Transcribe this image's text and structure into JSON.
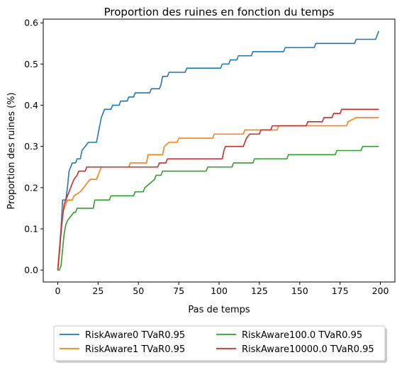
{
  "chart_data": {
    "type": "line",
    "title": "Proportion des ruines en fonction du temps",
    "xlabel": "Pas de temps",
    "ylabel": "Proportion des ruines (%)",
    "xlim": [
      -9,
      209
    ],
    "ylim": [
      -0.029,
      0.609
    ],
    "xticks": [
      0,
      25,
      50,
      75,
      100,
      125,
      150,
      175,
      200
    ],
    "yticks": [
      0.0,
      0.1,
      0.2,
      0.3,
      0.4,
      0.5,
      0.6
    ],
    "xtick_labels": [
      "0",
      "25",
      "50",
      "75",
      "100",
      "125",
      "150",
      "175",
      "200"
    ],
    "ytick_labels": [
      "0.0",
      "0.1",
      "0.2",
      "0.3",
      "0.4",
      "0.5",
      "0.6"
    ],
    "grid": false,
    "legend_position": "bottom-center-outside",
    "series": [
      {
        "name": "RiskAware0 TVaR0.95",
        "color": "#1f77b4",
        "points": [
          [
            0,
            0
          ],
          [
            1,
            0.05
          ],
          [
            2,
            0.1
          ],
          [
            3,
            0.17
          ],
          [
            5,
            0.17
          ],
          [
            6,
            0.2
          ],
          [
            7,
            0.24
          ],
          [
            8,
            0.25
          ],
          [
            9,
            0.26
          ],
          [
            11,
            0.26
          ],
          [
            12,
            0.27
          ],
          [
            14,
            0.27
          ],
          [
            15,
            0.29
          ],
          [
            17,
            0.3
          ],
          [
            19,
            0.31
          ],
          [
            24,
            0.31
          ],
          [
            25,
            0.33
          ],
          [
            26,
            0.35
          ],
          [
            27,
            0.37
          ],
          [
            29,
            0.39
          ],
          [
            33,
            0.39
          ],
          [
            34,
            0.4
          ],
          [
            38,
            0.4
          ],
          [
            39,
            0.41
          ],
          [
            43,
            0.41
          ],
          [
            44,
            0.42
          ],
          [
            47,
            0.42
          ],
          [
            48,
            0.43
          ],
          [
            57,
            0.43
          ],
          [
            58,
            0.44
          ],
          [
            63,
            0.44
          ],
          [
            64,
            0.45
          ],
          [
            65,
            0.47
          ],
          [
            68,
            0.47
          ],
          [
            69,
            0.48
          ],
          [
            79,
            0.48
          ],
          [
            80,
            0.49
          ],
          [
            101,
            0.49
          ],
          [
            102,
            0.5
          ],
          [
            106,
            0.5
          ],
          [
            107,
            0.51
          ],
          [
            111,
            0.51
          ],
          [
            112,
            0.52
          ],
          [
            120,
            0.52
          ],
          [
            121,
            0.53
          ],
          [
            140,
            0.53
          ],
          [
            141,
            0.54
          ],
          [
            159,
            0.54
          ],
          [
            160,
            0.55
          ],
          [
            184,
            0.55
          ],
          [
            185,
            0.56
          ],
          [
            197,
            0.56
          ],
          [
            198,
            0.57
          ],
          [
            199,
            0.58
          ]
        ]
      },
      {
        "name": "RiskAware1 TVaR0.95",
        "color": "#ff7f0e",
        "points": [
          [
            0,
            0
          ],
          [
            1,
            0.05
          ],
          [
            2,
            0.09
          ],
          [
            3,
            0.14
          ],
          [
            5,
            0.16
          ],
          [
            6,
            0.17
          ],
          [
            9,
            0.17
          ],
          [
            10,
            0.18
          ],
          [
            14,
            0.19
          ],
          [
            16,
            0.2
          ],
          [
            18,
            0.21
          ],
          [
            20,
            0.22
          ],
          [
            24,
            0.22
          ],
          [
            25,
            0.23
          ],
          [
            27,
            0.25
          ],
          [
            44,
            0.25
          ],
          [
            45,
            0.26
          ],
          [
            55,
            0.26
          ],
          [
            56,
            0.28
          ],
          [
            65,
            0.28
          ],
          [
            66,
            0.3
          ],
          [
            69,
            0.31
          ],
          [
            74,
            0.31
          ],
          [
            75,
            0.32
          ],
          [
            96,
            0.32
          ],
          [
            97,
            0.33
          ],
          [
            115,
            0.33
          ],
          [
            116,
            0.34
          ],
          [
            136,
            0.34
          ],
          [
            137,
            0.35
          ],
          [
            179,
            0.35
          ],
          [
            180,
            0.36
          ],
          [
            185,
            0.37
          ],
          [
            199,
            0.37
          ]
        ]
      },
      {
        "name": "RiskAware100.0 TVaR0.95",
        "color": "#2ca02c",
        "points": [
          [
            0,
            0
          ],
          [
            1,
            0
          ],
          [
            2,
            0.01
          ],
          [
            3,
            0.05
          ],
          [
            4,
            0.09
          ],
          [
            5,
            0.11
          ],
          [
            6,
            0.12
          ],
          [
            8,
            0.13
          ],
          [
            10,
            0.14
          ],
          [
            11,
            0.14
          ],
          [
            12,
            0.15
          ],
          [
            22,
            0.15
          ],
          [
            23,
            0.17
          ],
          [
            32,
            0.17
          ],
          [
            33,
            0.18
          ],
          [
            47,
            0.18
          ],
          [
            48,
            0.19
          ],
          [
            53,
            0.19
          ],
          [
            54,
            0.2
          ],
          [
            57,
            0.21
          ],
          [
            60,
            0.22
          ],
          [
            61,
            0.23
          ],
          [
            64,
            0.23
          ],
          [
            65,
            0.24
          ],
          [
            92,
            0.24
          ],
          [
            93,
            0.25
          ],
          [
            108,
            0.25
          ],
          [
            109,
            0.26
          ],
          [
            121,
            0.26
          ],
          [
            122,
            0.27
          ],
          [
            142,
            0.27
          ],
          [
            143,
            0.28
          ],
          [
            172,
            0.28
          ],
          [
            173,
            0.29
          ],
          [
            188,
            0.29
          ],
          [
            189,
            0.3
          ],
          [
            199,
            0.3
          ]
        ]
      },
      {
        "name": "RiskAware10000.0 TVaR0.95",
        "color": "#d62728",
        "points": [
          [
            0,
            0
          ],
          [
            1,
            0.04
          ],
          [
            2,
            0.09
          ],
          [
            3,
            0.13
          ],
          [
            4,
            0.16
          ],
          [
            5,
            0.17
          ],
          [
            7,
            0.19
          ],
          [
            8,
            0.2
          ],
          [
            10,
            0.22
          ],
          [
            12,
            0.23
          ],
          [
            13,
            0.24
          ],
          [
            17,
            0.24
          ],
          [
            18,
            0.25
          ],
          [
            62,
            0.25
          ],
          [
            63,
            0.26
          ],
          [
            67,
            0.26
          ],
          [
            68,
            0.27
          ],
          [
            102,
            0.27
          ],
          [
            103,
            0.29
          ],
          [
            104,
            0.3
          ],
          [
            115,
            0.3
          ],
          [
            116,
            0.31
          ],
          [
            117,
            0.32
          ],
          [
            119,
            0.33
          ],
          [
            125,
            0.33
          ],
          [
            126,
            0.34
          ],
          [
            132,
            0.34
          ],
          [
            133,
            0.35
          ],
          [
            154,
            0.35
          ],
          [
            155,
            0.36
          ],
          [
            164,
            0.36
          ],
          [
            165,
            0.37
          ],
          [
            170,
            0.37
          ],
          [
            171,
            0.38
          ],
          [
            175,
            0.38
          ],
          [
            176,
            0.39
          ],
          [
            199,
            0.39
          ]
        ]
      }
    ]
  }
}
